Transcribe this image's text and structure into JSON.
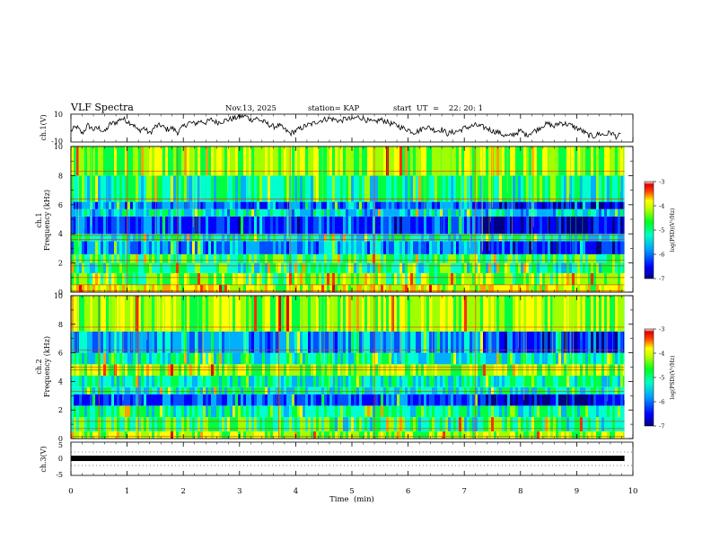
{
  "header": {
    "title": "VLF Spectra",
    "date": "Nov.13, 2025",
    "station": "station= KAP",
    "start_ut": "start  UT  =    22: 20: 1"
  },
  "colors": {
    "cmap": [
      "#000080",
      "#0000ff",
      "#0050ff",
      "#00b0ff",
      "#00ffd0",
      "#00ff40",
      "#a0ff00",
      "#ffff00",
      "#ffa000",
      "#ff3000",
      "#e00000",
      "#ffffff"
    ]
  },
  "chart_data": [
    {
      "type": "line",
      "id": "ch1_waveform",
      "ylabel": "ch.1(V)",
      "ylim": [
        -10,
        10
      ],
      "yticks": [
        "10",
        "-10"
      ],
      "xlim": [
        0,
        10
      ],
      "series": [
        {
          "name": "ch.1",
          "x": [
            0,
            0.1,
            0.2,
            0.3,
            0.4,
            0.5,
            0.6,
            0.7,
            0.8,
            0.9,
            1.0,
            1.1,
            1.2,
            1.3,
            1.4,
            1.5,
            1.6,
            1.7,
            1.8,
            1.9,
            2.0,
            2.1,
            2.2,
            2.3,
            2.4,
            2.5,
            2.6,
            2.7,
            2.8,
            2.9,
            3.0,
            3.1,
            3.2,
            3.3,
            3.4,
            3.5,
            3.6,
            3.7,
            3.8,
            3.9,
            4.0,
            4.1,
            4.2,
            4.3,
            4.4,
            4.5,
            4.6,
            4.7,
            4.8,
            4.9,
            5.0,
            5.1,
            5.2,
            5.3,
            5.4,
            5.5,
            5.6,
            5.7,
            5.8,
            5.9,
            6.0,
            6.1,
            6.2,
            6.3,
            6.4,
            6.5,
            6.6,
            6.7,
            6.8,
            6.9,
            7.0,
            7.1,
            7.2,
            7.3,
            7.4,
            7.5,
            7.6,
            7.7,
            7.8,
            7.9,
            8.0,
            8.1,
            8.2,
            8.3,
            8.4,
            8.5,
            8.6,
            8.7,
            8.8,
            8.9,
            9.0,
            9.1,
            9.2,
            9.3,
            9.4,
            9.5,
            9.6,
            9.7,
            9.8
          ],
          "values": [
            -2,
            1,
            -4,
            2,
            -1,
            0,
            -3,
            3,
            4,
            7,
            5,
            3,
            -2,
            0,
            -4,
            1,
            2,
            -1,
            0,
            -3,
            1,
            4,
            3,
            5,
            4,
            6,
            4,
            5,
            6,
            7,
            8,
            9,
            6,
            7,
            5,
            3,
            1,
            2,
            -1,
            -4,
            -2,
            0,
            2,
            3,
            5,
            6,
            7,
            6,
            5,
            7,
            6,
            8,
            7,
            5,
            4,
            6,
            5,
            3,
            2,
            0,
            -1,
            -3,
            -2,
            1,
            0,
            -2,
            -1,
            -4,
            -3,
            -2,
            0,
            1,
            2,
            1,
            0,
            -2,
            -3,
            -5,
            -6,
            -4,
            -2,
            -5,
            -3,
            -1,
            2,
            3,
            1,
            4,
            3,
            2,
            0,
            -2,
            -5,
            -6,
            -4,
            -5,
            -3,
            -6,
            -5
          ]
        }
      ]
    },
    {
      "type": "heatmap",
      "id": "ch1_spectrogram",
      "ylabel": "ch.1",
      "ylabel2": "Frequency (kHz)",
      "ylim": [
        0,
        10
      ],
      "yticks": [
        "0",
        "2",
        "4",
        "6",
        "8",
        "10"
      ],
      "xlim": [
        0,
        9.85
      ],
      "colorbar": {
        "label": "log(PSD)(V²/Hz)",
        "range": [
          -7,
          -3
        ],
        "ticks": [
          "-3",
          "-4",
          "-5",
          "-6",
          "-7"
        ]
      },
      "bands": [
        {
          "f": [
            0,
            0.5
          ],
          "v": 0.65
        },
        {
          "f": [
            0.5,
            1.3
          ],
          "v": 0.55
        },
        {
          "f": [
            1.3,
            2.0
          ],
          "v": 0.45
        },
        {
          "f": [
            2.0,
            2.6
          ],
          "v": 0.5
        },
        {
          "f": [
            2.6,
            3.5
          ],
          "v": 0.28
        },
        {
          "f": [
            3.5,
            4.0
          ],
          "v": 0.42
        },
        {
          "f": [
            4.0,
            5.2
          ],
          "v": 0.2
        },
        {
          "f": [
            5.2,
            5.7
          ],
          "v": 0.38
        },
        {
          "f": [
            5.7,
            6.2
          ],
          "v": 0.25
        },
        {
          "f": [
            6.2,
            8.0
          ],
          "v": 0.45
        },
        {
          "f": [
            8.0,
            10.0
          ],
          "v": 0.58
        }
      ],
      "lines_khz": [
        0.1,
        0.5,
        1.0,
        1.8,
        2.2,
        3.6,
        3.9,
        6.4,
        8.3
      ],
      "event_times_min": [
        1.0,
        1.9,
        3.9,
        5.4,
        7.2
      ]
    },
    {
      "type": "heatmap",
      "id": "ch2_spectrogram",
      "ylabel": "ch.2",
      "ylabel2": "Frequency (kHz)",
      "ylim": [
        0,
        10
      ],
      "yticks": [
        "0",
        "2",
        "4",
        "6",
        "8",
        "10"
      ],
      "xlim": [
        0,
        9.85
      ],
      "colorbar": {
        "label": "log(PSD)(V²/Hz)",
        "range": [
          -7,
          -3
        ],
        "ticks": [
          "-3",
          "-4",
          "-5",
          "-6",
          "-7"
        ]
      },
      "bands": [
        {
          "f": [
            0,
            0.5
          ],
          "v": 0.6
        },
        {
          "f": [
            0.5,
            1.5
          ],
          "v": 0.48
        },
        {
          "f": [
            1.5,
            2.3
          ],
          "v": 0.45
        },
        {
          "f": [
            2.3,
            3.1
          ],
          "v": 0.22
        },
        {
          "f": [
            3.1,
            3.6
          ],
          "v": 0.4
        },
        {
          "f": [
            3.6,
            4.4
          ],
          "v": 0.42
        },
        {
          "f": [
            4.4,
            5.2
          ],
          "v": 0.6
        },
        {
          "f": [
            5.2,
            6.0
          ],
          "v": 0.42
        },
        {
          "f": [
            6.0,
            7.5
          ],
          "v": 0.3
        },
        {
          "f": [
            7.5,
            10.0
          ],
          "v": 0.6
        }
      ],
      "lines_khz": [
        0.15,
        0.7,
        1.2,
        3.3,
        4.8,
        5.0,
        6.2,
        7.8
      ],
      "event_times_min": [
        0.5,
        1.2,
        3.7,
        5.4,
        7.2
      ]
    },
    {
      "type": "line",
      "id": "ch3_waveform",
      "ylabel": "ch.3(V)",
      "ylim": [
        -5,
        5
      ],
      "yticks": [
        "5",
        "0",
        "-5"
      ],
      "xlim": [
        0,
        10
      ],
      "series": [
        {
          "name": "ch.3",
          "x": [
            0,
            9.85
          ],
          "values": [
            -0.8,
            -0.8
          ]
        }
      ]
    }
  ],
  "xaxis": {
    "label": "Time  (min)",
    "ticks": [
      "0",
      "1",
      "2",
      "3",
      "4",
      "5",
      "6",
      "7",
      "8",
      "9",
      "10"
    ]
  }
}
